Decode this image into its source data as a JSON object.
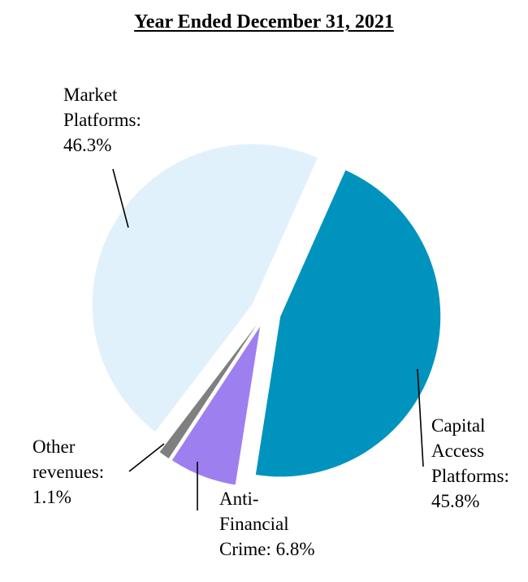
{
  "chart_data": {
    "type": "pie",
    "title": "Year Ended December 31, 2021",
    "slices": [
      {
        "label": "Capital Access Platforms",
        "value": 45.8,
        "value_label": "45.8%",
        "color": "#0093BD",
        "exploded": true
      },
      {
        "label": "Anti-Financial Crime",
        "value": 6.8,
        "value_label": "6.8%",
        "color": "#9E7FEF",
        "exploded": true
      },
      {
        "label": "Other revenues",
        "value": 1.1,
        "value_label": "1.1%",
        "color": "#7F7F7F",
        "exploded": true
      },
      {
        "label": "Market Platforms",
        "value": 46.3,
        "value_label": "46.3%",
        "color": "#E1F1FC",
        "exploded": true
      }
    ],
    "legend": "none",
    "callouts": {
      "market_platforms": [
        "Market",
        "Platforms:",
        "46.3%"
      ],
      "capital_access_platforms": [
        "Capital",
        "Access",
        "Platforms:",
        "45.8%"
      ],
      "anti_financial_crime": [
        "Anti-",
        "Financial",
        "Crime: 6.8%"
      ],
      "other_revenues": [
        "Other",
        "revenues:",
        "1.1%"
      ]
    }
  }
}
